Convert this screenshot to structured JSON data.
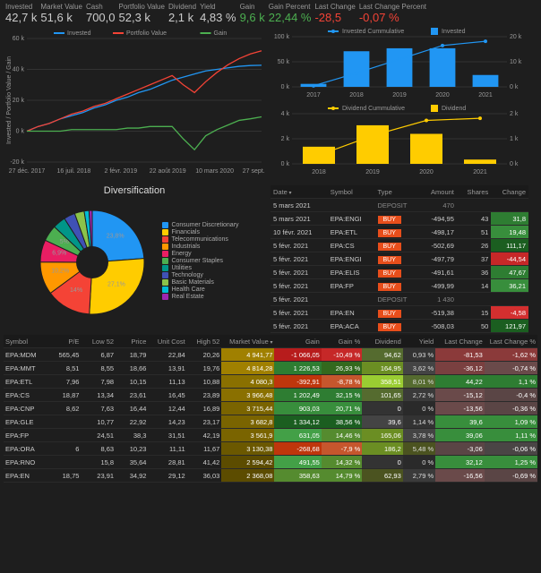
{
  "metrics": [
    {
      "label": "Invested",
      "value": "42,7 k",
      "color": "#ccc"
    },
    {
      "label": "Market Value",
      "value": "51,6 k",
      "color": "#ccc"
    },
    {
      "label": "Cash",
      "value": "700,0",
      "color": "#ccc"
    },
    {
      "label": "Portfolio Value",
      "value": "52,3 k",
      "color": "#ccc"
    },
    {
      "label": "Dividend",
      "value": "2,1 k",
      "color": "#ccc"
    },
    {
      "label": "Yield",
      "value": "4,83 %",
      "color": "#ccc"
    },
    {
      "label": "Gain",
      "value": "9,6 k",
      "color": "#4caf50"
    },
    {
      "label": "Gain Percent",
      "value": "22,44 %",
      "color": "#4caf50"
    },
    {
      "label": "Last Change",
      "value": "-28,5",
      "color": "#f44336"
    },
    {
      "label": "Last Change Percent",
      "value": "-0,07 %",
      "color": "#f44336"
    }
  ],
  "mainChart": {
    "ylabel": "Invested / Portfolio Value / Gain",
    "legend": [
      "Invested",
      "Portfolio Value",
      "Gain"
    ],
    "legendColors": [
      "#2196f3",
      "#f44336",
      "#4caf50"
    ],
    "xticks": [
      "27 déc. 2017",
      "16 juil. 2018",
      "2 févr. 2019",
      "22 août 2019",
      "10 mars 2020",
      "27 sept. 2020"
    ],
    "yticks": [
      "-20 k",
      "0 k",
      "20 k",
      "40 k",
      "60 k"
    ],
    "series": {
      "invested": [
        0,
        3,
        5,
        8,
        10,
        12,
        15,
        17,
        20,
        22,
        25,
        27,
        30,
        33,
        35,
        37,
        39,
        40,
        41,
        42,
        42.5,
        42.7
      ],
      "portfolio": [
        0,
        3,
        5,
        8,
        11,
        13,
        16,
        18,
        21,
        24,
        27,
        30,
        33,
        36,
        30,
        25,
        32,
        38,
        43,
        47,
        50,
        52
      ],
      "gain": [
        0,
        0,
        0,
        0,
        1,
        1,
        1,
        1,
        1,
        2,
        2,
        3,
        3,
        3,
        -5,
        -12,
        -3,
        1,
        4,
        7,
        8,
        9.3
      ]
    }
  },
  "barChart1": {
    "legend": [
      "Invested Cummulative",
      "Invested"
    ],
    "legendColors": [
      "#2196f3",
      "#2196f3"
    ],
    "xticks": [
      "2017",
      "2018",
      "2019",
      "2020",
      "2021"
    ],
    "yLeft": [
      "0 k",
      "50 k",
      "100 k"
    ],
    "yRight": [
      "0 k",
      "10 k",
      "20 k"
    ],
    "bars": [
      1,
      12,
      13,
      13,
      4
    ],
    "line": [
      1,
      13,
      26,
      39,
      43
    ]
  },
  "barChart2": {
    "legend": [
      "Dividend Cummulative",
      "Dividend"
    ],
    "legendColors": [
      "#ffcc00",
      "#ffcc00"
    ],
    "xticks": [
      "2018",
      "2019",
      "2020",
      "2021"
    ],
    "yLeft": [
      "0 k",
      "2 k",
      "4 k"
    ],
    "yRight": [
      "0 k",
      "1 k",
      "2 k"
    ],
    "bars": [
      0.4,
      0.9,
      0.7,
      0.1
    ],
    "line": [
      0.4,
      1.3,
      2.0,
      2.1
    ]
  },
  "pie": {
    "title": "Diversification",
    "slices": [
      {
        "label": "Consumer Discretionary",
        "pct": 23.8,
        "color": "#2196f3"
      },
      {
        "label": "Financials",
        "pct": 27.1,
        "color": "#ffcc00"
      },
      {
        "label": "Telecommunications",
        "pct": 14.0,
        "color": "#f44336"
      },
      {
        "label": "Industrials",
        "pct": 10.2,
        "color": "#ff9800"
      },
      {
        "label": "Energy",
        "pct": 6.9,
        "color": "#e91e63"
      },
      {
        "label": "Consumer Staples",
        "pct": 5.0,
        "color": "#4caf50"
      },
      {
        "label": "Utilities",
        "pct": 4.0,
        "color": "#009688"
      },
      {
        "label": "Technology",
        "pct": 3.5,
        "color": "#3f51b5"
      },
      {
        "label": "Basic Materials",
        "pct": 3.0,
        "color": "#8bc34a"
      },
      {
        "label": "Health Care",
        "pct": 1.5,
        "color": "#00bcd4"
      },
      {
        "label": "Real Estate",
        "pct": 1.0,
        "color": "#9c27b0"
      }
    ]
  },
  "tx": {
    "headers": [
      "Date",
      "Symbol",
      "Type",
      "Amount",
      "Shares",
      "Change"
    ],
    "rows": [
      {
        "date": "5 mars 2021",
        "symbol": "",
        "type": "DEPOSIT",
        "amount": "470",
        "shares": "",
        "change": ""
      },
      {
        "date": "5 mars 2021",
        "symbol": "EPA:ENGI",
        "type": "BUY",
        "amount": "-494,95",
        "shares": "43",
        "change": "31,8",
        "chColor": "#2e7d32"
      },
      {
        "date": "10 févr. 2021",
        "symbol": "EPA:ETL",
        "type": "BUY",
        "amount": "-498,17",
        "shares": "51",
        "change": "19,48",
        "chColor": "#388e3c"
      },
      {
        "date": "5 févr. 2021",
        "symbol": "EPA:CS",
        "type": "BUY",
        "amount": "-502,69",
        "shares": "26",
        "change": "111,17",
        "chColor": "#1b5e20"
      },
      {
        "date": "5 févr. 2021",
        "symbol": "EPA:ENGI",
        "type": "BUY",
        "amount": "-497,79",
        "shares": "37",
        "change": "-44,54",
        "chColor": "#c62828"
      },
      {
        "date": "5 févr. 2021",
        "symbol": "EPA:ELIS",
        "type": "BUY",
        "amount": "-491,61",
        "shares": "36",
        "change": "47,67",
        "chColor": "#2e7d32"
      },
      {
        "date": "5 févr. 2021",
        "symbol": "EPA:FP",
        "type": "BUY",
        "amount": "-499,99",
        "shares": "14",
        "change": "36,21",
        "chColor": "#388e3c"
      },
      {
        "date": "5 févr. 2021",
        "symbol": "",
        "type": "DEPOSIT",
        "amount": "1 430",
        "shares": "",
        "change": ""
      },
      {
        "date": "5 févr. 2021",
        "symbol": "EPA:EN",
        "type": "BUY",
        "amount": "-519,38",
        "shares": "15",
        "change": "-4,58",
        "chColor": "#d32f2f"
      },
      {
        "date": "5 févr. 2021",
        "symbol": "EPA:ACA",
        "type": "BUY",
        "amount": "-508,03",
        "shares": "50",
        "change": "121,97",
        "chColor": "#1b5e20"
      }
    ]
  },
  "holdings": {
    "headers": [
      "Symbol",
      "P/E",
      "Low 52",
      "Price",
      "Unit Cost",
      "High 52",
      "Market Value",
      "Gain",
      "Gain %",
      "Dividend",
      "Yield",
      "Last Change",
      "Last Change %"
    ],
    "rows": [
      {
        "sym": "EPA:MDM",
        "pe": "565,45",
        "low": "6,87",
        "price": "18,79",
        "uc": "22,84",
        "high": "20,26",
        "mv": "4 941,77",
        "mvC": "#a08000",
        "gain": "-1 066,05",
        "gainC": "#b71c1c",
        "gp": "-10,49 %",
        "gpC": "#c62828",
        "div": "94,62",
        "divC": "#556b2f",
        "yld": "0,93 %",
        "yldC": "#333",
        "lc": "-81,53",
        "lcC": "#8b3a3a",
        "lcp": "-1,62 %",
        "lcpC": "#8b3a3a"
      },
      {
        "sym": "EPA:MMT",
        "pe": "8,51",
        "low": "8,55",
        "price": "18,66",
        "uc": "13,91",
        "high": "19,76",
        "mv": "4 814,28",
        "mvC": "#a08000",
        "gain": "1 226,53",
        "gainC": "#2e7d32",
        "gp": "26,93 %",
        "gpC": "#33691e",
        "div": "164,95",
        "divC": "#6b8e23",
        "yld": "3,62 %",
        "yldC": "#444",
        "lc": "-36,12",
        "lcC": "#7a4040",
        "lcp": "-0,74 %",
        "lcpC": "#6a4a4a"
      },
      {
        "sym": "EPA:ETL",
        "pe": "7,96",
        "low": "7,98",
        "price": "10,15",
        "uc": "11,13",
        "high": "10,88",
        "mv": "4 080,3",
        "mvC": "#8a7000",
        "gain": "-392,91",
        "gainC": "#bf360c",
        "gp": "-8,78 %",
        "gpC": "#c6562d",
        "div": "358,51",
        "divC": "#9acd32",
        "yld": "8,01 %",
        "yldC": "#556b2f",
        "lc": "44,22",
        "lcC": "#2e7d32",
        "lcp": "1,1 %",
        "lcpC": "#2e7d32"
      },
      {
        "sym": "EPA:CS",
        "pe": "18,87",
        "low": "13,34",
        "price": "23,61",
        "uc": "16,45",
        "high": "23,89",
        "mv": "3 966,48",
        "mvC": "#8a7000",
        "gain": "1 202,49",
        "gainC": "#2e7d32",
        "gp": "32,15 %",
        "gpC": "#2e7d32",
        "div": "101,65",
        "divC": "#556b2f",
        "yld": "2,72 %",
        "yldC": "#3a3a3a",
        "lc": "-15,12",
        "lcC": "#6a4a4a",
        "lcp": "-0,4 %",
        "lcpC": "#5a4545"
      },
      {
        "sym": "EPA:CNP",
        "pe": "8,62",
        "low": "7,63",
        "price": "16,44",
        "uc": "12,44",
        "high": "16,89",
        "mv": "3 715,44",
        "mvC": "#7a6400",
        "gain": "903,03",
        "gainC": "#388e3c",
        "gp": "20,71 %",
        "gpC": "#388e3c",
        "div": "0",
        "divC": "#333",
        "yld": "0 %",
        "yldC": "#2a2a2a",
        "lc": "-13,56",
        "lcC": "#6a4a4a",
        "lcp": "-0,36 %",
        "lcpC": "#5a4545"
      },
      {
        "sym": "EPA:GLE",
        "pe": "",
        "low": "10,77",
        "price": "22,92",
        "uc": "14,23",
        "high": "23,17",
        "mv": "3 682,8",
        "mvC": "#7a6400",
        "gain": "1 334,12",
        "gainC": "#1b5e20",
        "gp": "38,56 %",
        "gpC": "#1b5e20",
        "div": "39,6",
        "divC": "#444",
        "yld": "1,14 %",
        "yldC": "#333",
        "lc": "39,6",
        "lcC": "#388e3c",
        "lcp": "1,09 %",
        "lcpC": "#388e3c"
      },
      {
        "sym": "EPA:FP",
        "pe": "",
        "low": "24,51",
        "price": "38,3",
        "uc": "31,51",
        "high": "42,19",
        "mv": "3 561,9",
        "mvC": "#7a6400",
        "gain": "631,05",
        "gainC": "#43a047",
        "gp": "14,46 %",
        "gpC": "#558b2f",
        "div": "165,06",
        "divC": "#6b8e23",
        "yld": "3,78 %",
        "yldC": "#444",
        "lc": "39,06",
        "lcC": "#388e3c",
        "lcp": "1,11 %",
        "lcpC": "#388e3c"
      },
      {
        "sym": "EPA:ORA",
        "pe": "6",
        "low": "8,63",
        "price": "10,23",
        "uc": "11,11",
        "high": "11,67",
        "mv": "3 130,38",
        "mvC": "#6b5800",
        "gain": "-268,68",
        "gainC": "#bf360c",
        "gp": "-7,9 %",
        "gpC": "#c6562d",
        "div": "186,2",
        "divC": "#6b8e23",
        "yld": "5,48 %",
        "yldC": "#4b5320",
        "lc": "-3,06",
        "lcC": "#5a4545",
        "lcp": "-0,06 %",
        "lcpC": "#4a4545"
      },
      {
        "sym": "EPA:RNO",
        "pe": "",
        "low": "15,8",
        "price": "35,64",
        "uc": "28,81",
        "high": "41,42",
        "mv": "2 594,42",
        "mvC": "#5c4c00",
        "gain": "491,55",
        "gainC": "#43a047",
        "gp": "14,32 %",
        "gpC": "#558b2f",
        "div": "0",
        "divC": "#333",
        "yld": "0 %",
        "yldC": "#2a2a2a",
        "lc": "32,12",
        "lcC": "#388e3c",
        "lcp": "1,25 %",
        "lcpC": "#388e3c"
      },
      {
        "sym": "EPA:EN",
        "pe": "18,75",
        "low": "23,91",
        "price": "34,92",
        "uc": "29,12",
        "high": "36,03",
        "mv": "2 368,08",
        "mvC": "#5c4c00",
        "gain": "358,63",
        "gainC": "#558b2f",
        "gp": "14,79 %",
        "gpC": "#558b2f",
        "div": "62,93",
        "divC": "#4b5320",
        "yld": "2,79 %",
        "yldC": "#3a3a3a",
        "lc": "-16,56",
        "lcC": "#6a4a4a",
        "lcp": "-0,69 %",
        "lcpC": "#5a4545"
      }
    ]
  }
}
